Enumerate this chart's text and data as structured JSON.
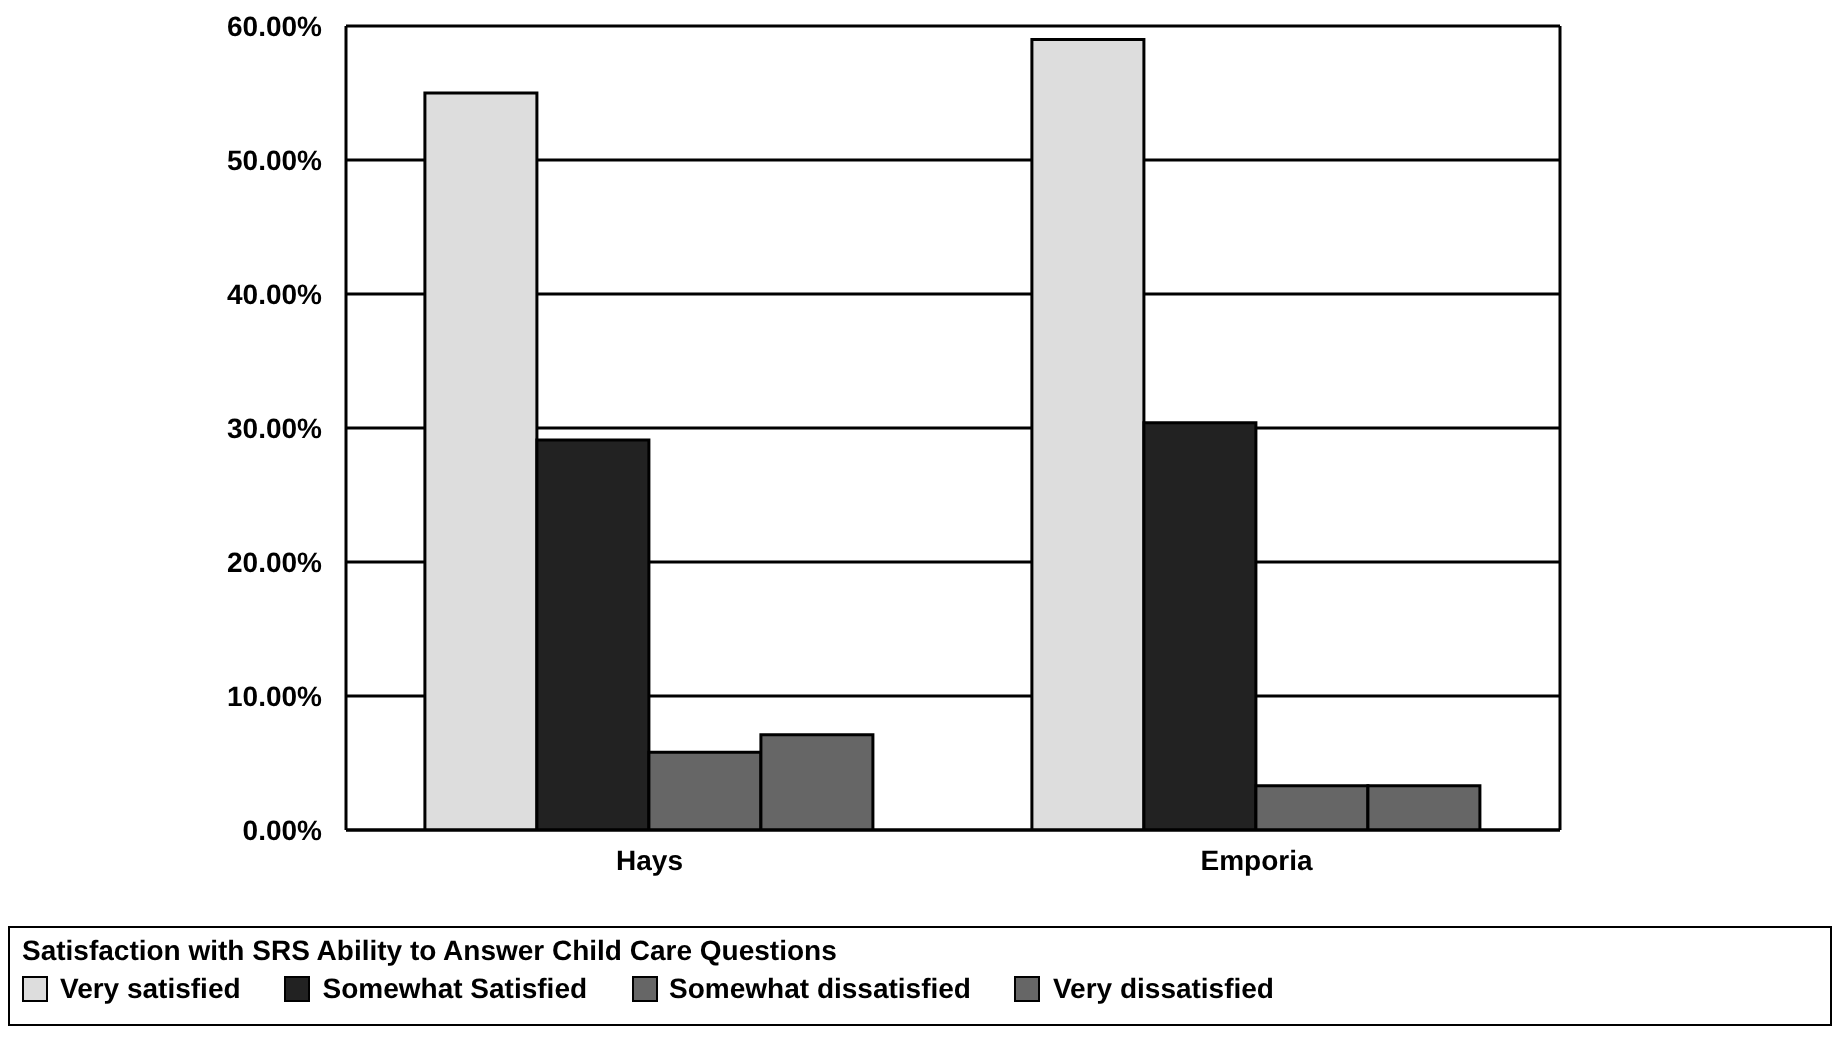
{
  "chart_data": {
    "type": "bar",
    "categories": [
      "Hays",
      "Emporia"
    ],
    "series": [
      {
        "name": "Very satisfied",
        "color": "#dddddd",
        "values": [
          55,
          59
        ]
      },
      {
        "name": "Somewhat Satisfied",
        "color": "#222222",
        "values": [
          29.1,
          30.4
        ]
      },
      {
        "name": "Somewhat dissatisfied",
        "color": "#666666",
        "values": [
          5.8,
          3.3
        ]
      },
      {
        "name": "Very dissatisfied",
        "color": "#666666",
        "values": [
          7.1,
          3.3
        ]
      }
    ],
    "legend_title": "Satisfaction with SRS Ability to Answer Child Care Questions",
    "ylim": [
      0,
      60
    ],
    "yticks": [
      {
        "value": 0,
        "label": "0.00%"
      },
      {
        "value": 10,
        "label": "10.00%"
      },
      {
        "value": 20,
        "label": "20.00%"
      },
      {
        "value": 30,
        "label": "30.00%"
      },
      {
        "value": 40,
        "label": "40.00%"
      },
      {
        "value": 50,
        "label": "50.00%"
      },
      {
        "value": 60,
        "label": "60.00%"
      }
    ],
    "grid": "y",
    "legend": "bottom"
  }
}
